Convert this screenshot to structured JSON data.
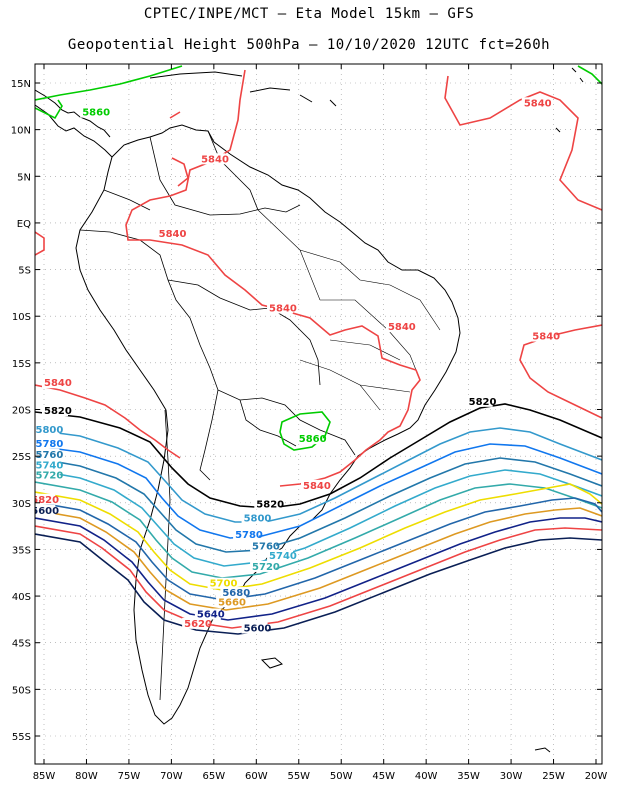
{
  "title_line1": "CPTEC/INPE/MCT –   Eta Model 15km – GFS",
  "title_line2": "Geopotential Height 500hPa – 10/10/2020 12UTC fct=260h",
  "lat_labels": [
    "15N",
    "10N",
    "5N",
    "EQ",
    "5S",
    "10S",
    "15S",
    "20S",
    "25S",
    "30S",
    "35S",
    "40S",
    "45S",
    "50S",
    "55S"
  ],
  "lon_labels": [
    "85W",
    "80W",
    "75W",
    "70W",
    "65W",
    "60W",
    "55W",
    "50W",
    "45W",
    "40W",
    "35W",
    "30W",
    "25W",
    "20W"
  ],
  "contour_labels": [
    {
      "text": "5860",
      "color": "#00cc00",
      "lon": -80.5,
      "lat": 11.5
    },
    {
      "text": "5840",
      "color": "#ee4444",
      "lon": -28.5,
      "lat": 12.5
    },
    {
      "text": "5840",
      "color": "#ee4444",
      "lon": -66.5,
      "lat": 6.5
    },
    {
      "text": "5840",
      "color": "#ee4444",
      "lon": -71.5,
      "lat": -1.5
    },
    {
      "text": "5840",
      "color": "#ee4444",
      "lon": -58.5,
      "lat": -9.5
    },
    {
      "text": "5840",
      "color": "#ee4444",
      "lon": -44.5,
      "lat": -11.5
    },
    {
      "text": "5840",
      "color": "#ee4444",
      "lon": -27.5,
      "lat": -12.5
    },
    {
      "text": "5840",
      "color": "#ee4444",
      "lon": -85.0,
      "lat": -17.5
    },
    {
      "text": "5820",
      "color": "#000000",
      "lon": -85.0,
      "lat": -20.5
    },
    {
      "text": "5820",
      "color": "#000000",
      "lon": -35.0,
      "lat": -19.5
    },
    {
      "text": "5860",
      "color": "#00cc00",
      "lon": -55.0,
      "lat": -23.5
    },
    {
      "text": "5840",
      "color": "#ee4444",
      "lon": -54.5,
      "lat": -28.5
    },
    {
      "text": "5820",
      "color": "#000000",
      "lon": -60.0,
      "lat": -30.5
    },
    {
      "text": "5800",
      "color": "#3399cc",
      "lon": -86.0,
      "lat": -22.5
    },
    {
      "text": "5780",
      "color": "#1177ee",
      "lon": -86.0,
      "lat": -24.0
    },
    {
      "text": "5760",
      "color": "#2277aa",
      "lon": -86.0,
      "lat": -25.2
    },
    {
      "text": "5740",
      "color": "#33aacc",
      "lon": -86.0,
      "lat": -26.3
    },
    {
      "text": "5720",
      "color": "#33aaaa",
      "lon": -86.0,
      "lat": -27.4
    },
    {
      "text": "5800",
      "color": "#3399cc",
      "lon": -61.5,
      "lat": -32.0
    },
    {
      "text": "5780",
      "color": "#1177ee",
      "lon": -62.5,
      "lat": -33.8
    },
    {
      "text": "5760",
      "color": "#2277aa",
      "lon": -60.5,
      "lat": -35.0
    },
    {
      "text": "5740",
      "color": "#33aacc",
      "lon": -58.5,
      "lat": -36.0
    },
    {
      "text": "5720",
      "color": "#33aaaa",
      "lon": -60.5,
      "lat": -37.2
    },
    {
      "text": "5700",
      "color": "#eedd00",
      "lon": -65.5,
      "lat": -39.0
    },
    {
      "text": "5680",
      "color": "#2266aa",
      "lon": -64.0,
      "lat": -40.0
    },
    {
      "text": "5660",
      "color": "#dd9922",
      "lon": -64.5,
      "lat": -41.0
    },
    {
      "text": "5640",
      "color": "#112288",
      "lon": -67.0,
      "lat": -42.3
    },
    {
      "text": "5620",
      "color": "#ee4444",
      "lon": -68.5,
      "lat": -43.3
    },
    {
      "text": "5600",
      "color": "#0a1f55",
      "lon": -61.5,
      "lat": -43.8
    },
    {
      "text": "5820",
      "color": "#ee4444",
      "lon": -86.5,
      "lat": -30.0
    },
    {
      "text": "5600",
      "color": "#0a1f55",
      "lon": -86.5,
      "lat": -31.2
    }
  ]
}
